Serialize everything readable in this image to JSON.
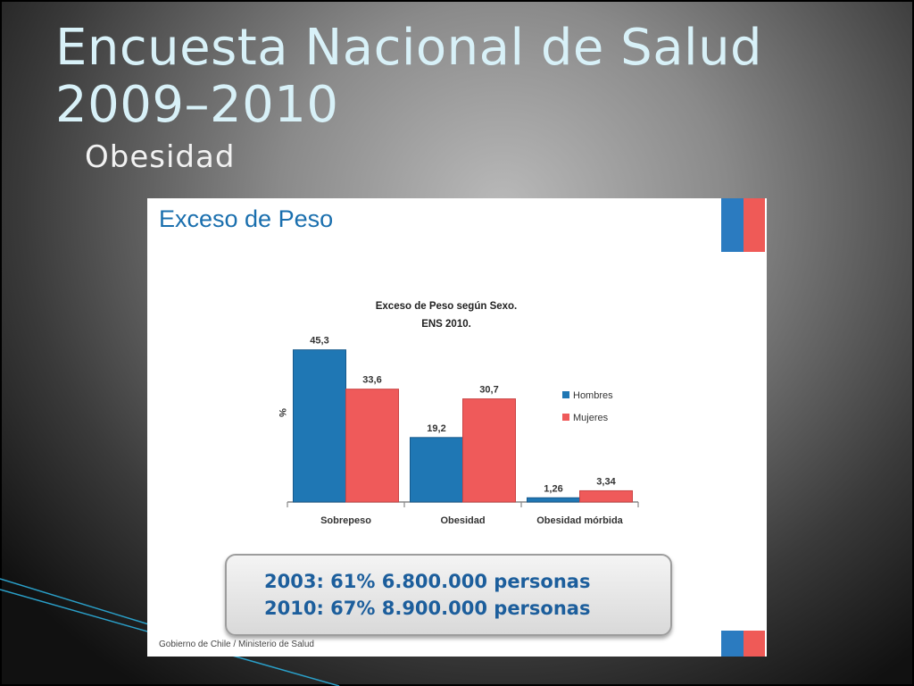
{
  "slide": {
    "title_line1": "Encuesta Nacional de Salud",
    "title_line2": "2009–2010",
    "subtitle": "Obesidad"
  },
  "image": {
    "heading": "Exceso de Peso",
    "footer": "Gobierno de Chile / Ministerio de Salud",
    "summary": [
      "2003: 61% 6.800.000 personas",
      "2010: 67% 8.900.000 personas"
    ],
    "flag_colors": [
      "#2b7bc0",
      "#ef5a57"
    ]
  },
  "chart_data": {
    "type": "bar",
    "title": "Exceso de Peso según Sexo.",
    "subtitle": "ENS 2010.",
    "ylabel": "%",
    "categories": [
      "Sobrepeso",
      "Obesidad",
      "Obesidad mórbida"
    ],
    "series": [
      {
        "name": "Hombres",
        "values": [
          45.3,
          19.2,
          1.26
        ],
        "labels": [
          "45,3",
          "19,2",
          "1,26"
        ],
        "color": "#1f77b4"
      },
      {
        "name": "Mujeres",
        "values": [
          33.6,
          30.7,
          3.34
        ],
        "labels": [
          "33,6",
          "30,7",
          "3,34"
        ],
        "color": "#ef5a5a"
      }
    ],
    "ylim": [
      0,
      50
    ],
    "legend": "right",
    "grid": false
  }
}
